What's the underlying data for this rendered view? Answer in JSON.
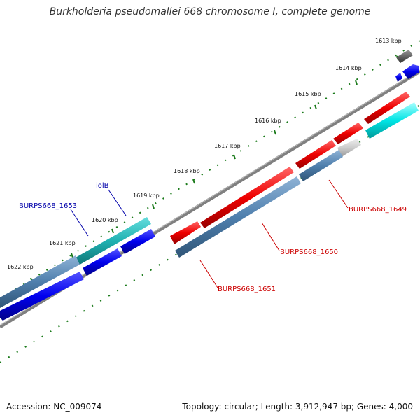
{
  "title": "Burkholderia pseudomallei 668 chromosome I, complete genome",
  "footer": {
    "accession": "Accession: NC_009074",
    "summary": "Topology: circular; Length: 3,912,947 bp; Genes: 4,000"
  },
  "ruler_labels": [
    "1613 kbp",
    "1614 kbp",
    "1615 kbp",
    "1616 kbp",
    "1617 kbp",
    "1618 kbp",
    "1619 kbp",
    "1620 kbp",
    "1621 kbp",
    "1622 kbp"
  ],
  "gene_labels": [
    {
      "name": "BURPS668_1649",
      "color": "#cc0000"
    },
    {
      "name": "BURPS668_1650",
      "color": "#cc0000"
    },
    {
      "name": "BURPS668_1651",
      "color": "#cc0000"
    },
    {
      "name": "BURPS668_1653",
      "color": "#0000aa"
    },
    {
      "name": "iolB",
      "color": "#0000aa"
    }
  ],
  "colors": {
    "forward_gene": "#ee0000",
    "reverse_gene": "#0000ee",
    "forward_cds": "#00e5e5",
    "reverse_cds": "#4f7fad",
    "backbone": "#808080",
    "ticks": "#1a7a1a"
  }
}
